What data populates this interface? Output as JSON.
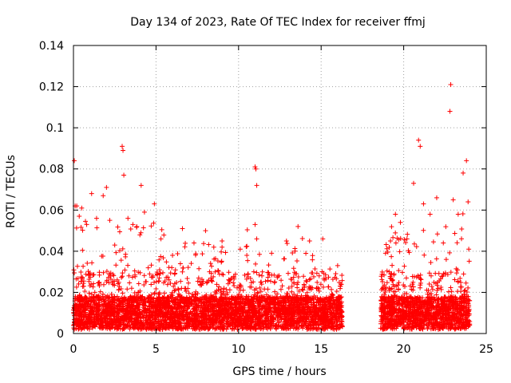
{
  "chart_data": {
    "type": "scatter",
    "title": "Day 134 of 2023, Rate Of TEC Index for receiver ffmj",
    "xlabel": "GPS time / hours",
    "ylabel": "ROTI / TECUs",
    "xlim": [
      0,
      25
    ],
    "ylim": [
      0,
      0.14
    ],
    "xticks": [
      0,
      5,
      10,
      15,
      20,
      25
    ],
    "xtick_labels": [
      "0",
      "5",
      "10",
      "15",
      "20",
      "25"
    ],
    "yticks": [
      0,
      0.02,
      0.04,
      0.06,
      0.08,
      0.1,
      0.12,
      0.14
    ],
    "ytick_labels": [
      "0",
      "0.02",
      "0.04",
      "0.06",
      "0.08",
      "0.1",
      "0.12",
      "0.14"
    ],
    "grid": true,
    "marker": "+",
    "color": "#ff0000",
    "series": [
      {
        "name": "ROTI",
        "note": "dense scatter; data gap approx. 16.3h to 18.6h",
        "coverage": [
          [
            0,
            16.3
          ],
          [
            18.6,
            24
          ]
        ],
        "envelope_points": [
          [
            0.05,
            0.084
          ],
          [
            0.1,
            0.062
          ],
          [
            0.2,
            0.062
          ],
          [
            0.35,
            0.057
          ],
          [
            0.5,
            0.061
          ],
          [
            0.8,
            0.053
          ],
          [
            1.1,
            0.068
          ],
          [
            1.4,
            0.056
          ],
          [
            1.8,
            0.067
          ],
          [
            2.0,
            0.071
          ],
          [
            2.2,
            0.055
          ],
          [
            2.5,
            0.043
          ],
          [
            2.95,
            0.091
          ],
          [
            3.0,
            0.089
          ],
          [
            3.05,
            0.077
          ],
          [
            3.3,
            0.056
          ],
          [
            3.6,
            0.053
          ],
          [
            4.1,
            0.072
          ],
          [
            4.3,
            0.059
          ],
          [
            4.9,
            0.063
          ],
          [
            5.3,
            0.046
          ],
          [
            6.0,
            0.038
          ],
          [
            6.6,
            0.051
          ],
          [
            7.3,
            0.044
          ],
          [
            8.0,
            0.05
          ],
          [
            8.5,
            0.042
          ],
          [
            9.0,
            0.045
          ],
          [
            10.1,
            0.041
          ],
          [
            10.5,
            0.038
          ],
          [
            11.0,
            0.081
          ],
          [
            11.05,
            0.08
          ],
          [
            11.1,
            0.072
          ],
          [
            11.0,
            0.053
          ],
          [
            11.1,
            0.046
          ],
          [
            12.0,
            0.039
          ],
          [
            12.9,
            0.045
          ],
          [
            13.6,
            0.052
          ],
          [
            14.3,
            0.045
          ],
          [
            15.1,
            0.046
          ],
          [
            16.0,
            0.033
          ],
          [
            18.9,
            0.039
          ],
          [
            19.2,
            0.045
          ],
          [
            19.5,
            0.058
          ],
          [
            19.8,
            0.054
          ],
          [
            20.2,
            0.046
          ],
          [
            20.6,
            0.073
          ],
          [
            20.9,
            0.094
          ],
          [
            21.0,
            0.091
          ],
          [
            21.2,
            0.063
          ],
          [
            21.6,
            0.058
          ],
          [
            22.0,
            0.066
          ],
          [
            22.4,
            0.044
          ],
          [
            22.85,
            0.121
          ],
          [
            22.8,
            0.108
          ],
          [
            23.0,
            0.065
          ],
          [
            23.3,
            0.058
          ],
          [
            23.6,
            0.078
          ],
          [
            23.8,
            0.084
          ],
          [
            23.9,
            0.064
          ]
        ]
      }
    ]
  }
}
